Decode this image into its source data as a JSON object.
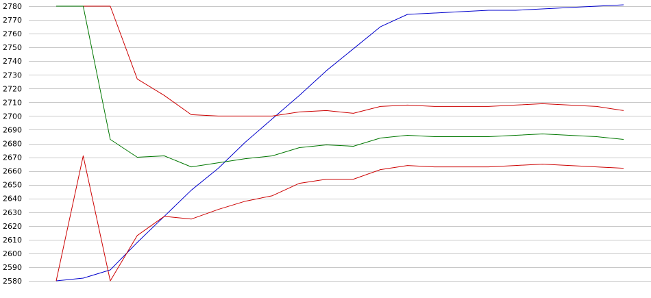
{
  "chart_data": {
    "type": "line",
    "title": "",
    "xlabel": "",
    "ylabel": "",
    "ylim": [
      2580,
      2780
    ],
    "yticks": [
      2580,
      2590,
      2600,
      2610,
      2620,
      2630,
      2640,
      2650,
      2660,
      2670,
      2680,
      2690,
      2700,
      2710,
      2720,
      2730,
      2740,
      2750,
      2760,
      2770,
      2780
    ],
    "grid": "horizontal",
    "legend": "none",
    "x": [
      1,
      2,
      3,
      4,
      5,
      6,
      7,
      8,
      9,
      10,
      11,
      12,
      13,
      14,
      15,
      16,
      17,
      18,
      19,
      20,
      21,
      22
    ],
    "series": [
      {
        "color": "#0000cc",
        "values": [
          2580,
          2582,
          2588,
          2608,
          2627,
          2646,
          2662,
          2681,
          2698,
          2715,
          2733,
          2749,
          2765,
          2774,
          2775,
          2776,
          2777,
          2777,
          2778,
          2779,
          2780,
          2781
        ]
      },
      {
        "color": "#cc0000",
        "values": [
          2780,
          2780,
          2780,
          2727,
          2715,
          2701,
          2700,
          2700,
          2700,
          2703,
          2704,
          2702,
          2707,
          2708,
          2707,
          2707,
          2707,
          2708,
          2709,
          2708,
          2707,
          2704
        ]
      },
      {
        "color": "#007700",
        "values": [
          2780,
          2780,
          2683,
          2670,
          2671,
          2663,
          2666,
          2669,
          2671,
          2677,
          2679,
          2678,
          2684,
          2686,
          2685,
          2685,
          2685,
          2686,
          2687,
          2686,
          2685,
          2683
        ]
      },
      {
        "color": "#cc0000",
        "values": [
          2580,
          2671,
          2580,
          2613,
          2627,
          2625,
          2632,
          2638,
          2642,
          2651,
          2654,
          2654,
          2661,
          2664,
          2663,
          2663,
          2663,
          2664,
          2665,
          2664,
          2663,
          2662
        ]
      }
    ]
  },
  "style": {
    "grid_color": "#c8c8c8",
    "axis_color": "#000000"
  }
}
